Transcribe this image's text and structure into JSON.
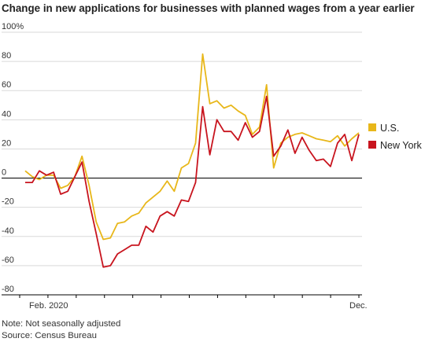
{
  "chart_data": {
    "type": "line",
    "title": "Change in new applications for businesses with planned wages from a year earlier",
    "y_tick_labels": [
      "100%",
      "80",
      "60",
      "40",
      "20",
      "0",
      "-20",
      "-40",
      "-60",
      "-80"
    ],
    "y_ticks": [
      100,
      80,
      60,
      40,
      20,
      0,
      -20,
      -40,
      -60,
      -80
    ],
    "ylim": [
      -80,
      100
    ],
    "x_tick_labels": [
      "Feb. 2020",
      "Dec."
    ],
    "x_tick_positions": [
      4,
      50
    ],
    "x_count": 53,
    "grid": true,
    "legend_position": "right",
    "colors": {
      "us": "#e8b71a",
      "ny": "#c8141e",
      "zero": "#000000",
      "grid": "#d9d9d9"
    },
    "series": [
      {
        "name": "U.S.",
        "color": "#e8b71a",
        "values": [
          5,
          1,
          -1,
          2,
          2,
          -7,
          -5,
          1,
          15,
          -5,
          -30,
          -42,
          -41,
          -31,
          -30,
          -26,
          -24,
          -17,
          -13,
          -9,
          -2,
          -9,
          7,
          10,
          24,
          85,
          51,
          53,
          48,
          50,
          46,
          43,
          30,
          35,
          64,
          7,
          24,
          28,
          30,
          31,
          29,
          27,
          26,
          25,
          29,
          22,
          27,
          31
        ]
      },
      {
        "name": "New York",
        "color": "#c8141e",
        "values": [
          -3,
          -3,
          5,
          2,
          4,
          -11,
          -9,
          1,
          11,
          -16,
          -38,
          -61,
          -60,
          -52,
          -49,
          -46,
          -46,
          -33,
          -37,
          -26,
          -23,
          -26,
          -15,
          -16,
          -3,
          49,
          16,
          40,
          32,
          32,
          26,
          38,
          28,
          32,
          56,
          15,
          22,
          33,
          17,
          28,
          19,
          12,
          13,
          8,
          24,
          30,
          12,
          30
        ]
      }
    ]
  },
  "footer": {
    "note": "Note: Not seasonally adjusted",
    "source": "Source: Census Bureau"
  }
}
